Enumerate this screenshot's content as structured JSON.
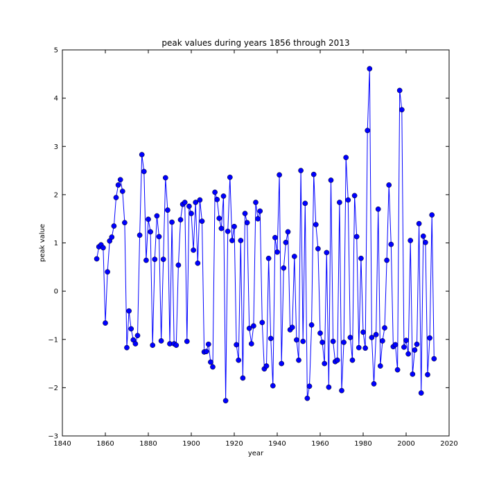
{
  "chart_data": {
    "type": "line",
    "title": "peak values during years 1856 through 2013",
    "xlabel": "year",
    "ylabel": "peak value",
    "xlim": [
      1840,
      2020
    ],
    "ylim": [
      -3,
      5
    ],
    "xticks": [
      1840,
      1860,
      1880,
      1900,
      1920,
      1940,
      1960,
      1980,
      2000,
      2020
    ],
    "yticks": [
      -3,
      -2,
      -1,
      0,
      1,
      2,
      3,
      4,
      5
    ],
    "ytick_labels": [
      "−3",
      "−2",
      "−1",
      "0",
      "1",
      "2",
      "3",
      "4",
      "5"
    ],
    "grid": false,
    "series": [
      {
        "color": "#0000ff",
        "marker": "circle",
        "x": [
          1856,
          1857,
          1858,
          1859,
          1860,
          1861,
          1862,
          1863,
          1864,
          1865,
          1866,
          1867,
          1868,
          1869,
          1870,
          1871,
          1872,
          1873,
          1874,
          1875,
          1876,
          1877,
          1878,
          1879,
          1880,
          1881,
          1882,
          1883,
          1884,
          1885,
          1886,
          1887,
          1888,
          1889,
          1890,
          1891,
          1892,
          1893,
          1894,
          1895,
          1896,
          1897,
          1898,
          1899,
          1900,
          1901,
          1902,
          1903,
          1904,
          1905,
          1906,
          1907,
          1908,
          1909,
          1910,
          1911,
          1912,
          1913,
          1914,
          1915,
          1916,
          1917,
          1918,
          1919,
          1920,
          1921,
          1922,
          1923,
          1924,
          1925,
          1926,
          1927,
          1928,
          1929,
          1930,
          1931,
          1932,
          1933,
          1934,
          1935,
          1936,
          1937,
          1938,
          1939,
          1940,
          1941,
          1942,
          1943,
          1944,
          1945,
          1946,
          1947,
          1948,
          1949,
          1950,
          1951,
          1952,
          1953,
          1954,
          1955,
          1956,
          1957,
          1958,
          1959,
          1960,
          1961,
          1962,
          1963,
          1964,
          1965,
          1966,
          1967,
          1968,
          1969,
          1970,
          1971,
          1972,
          1973,
          1974,
          1975,
          1976,
          1977,
          1978,
          1979,
          1980,
          1981,
          1982,
          1983,
          1984,
          1985,
          1986,
          1987,
          1988,
          1989,
          1990,
          1991,
          1992,
          1993,
          1994,
          1995,
          1996,
          1997,
          1998,
          1999,
          2000,
          2001,
          2002,
          2003,
          2004,
          2005,
          2006,
          2007,
          2008,
          2009,
          2010,
          2011,
          2012,
          2013
        ],
        "y": [
          0.67,
          0.92,
          0.96,
          0.9,
          -0.66,
          0.4,
          1.04,
          1.12,
          1.35,
          1.94,
          2.2,
          2.31,
          2.07,
          1.42,
          -1.17,
          -0.41,
          -0.78,
          -1.01,
          -1.09,
          -0.92,
          1.16,
          2.83,
          2.48,
          0.64,
          1.49,
          1.23,
          -1.12,
          0.66,
          1.56,
          1.13,
          -1.03,
          0.66,
          2.35,
          1.68,
          -1.09,
          1.43,
          -1.09,
          -1.12,
          0.54,
          1.48,
          1.8,
          1.84,
          -1.04,
          1.76,
          1.61,
          0.85,
          1.84,
          0.58,
          1.89,
          1.45,
          -1.26,
          -1.25,
          -1.1,
          -1.47,
          -1.57,
          2.05,
          1.9,
          1.51,
          1.3,
          1.97,
          -2.27,
          1.24,
          2.36,
          1.05,
          1.34,
          -1.11,
          -1.43,
          1.05,
          -1.8,
          1.61,
          1.42,
          -0.77,
          -1.09,
          -0.72,
          1.84,
          1.5,
          1.66,
          -0.65,
          -1.61,
          -1.55,
          0.68,
          -0.98,
          -1.96,
          1.11,
          0.81,
          2.41,
          -1.5,
          0.48,
          1.01,
          1.23,
          -0.8,
          -0.75,
          0.72,
          -1.01,
          -1.43,
          2.5,
          -1.04,
          1.82,
          -2.22,
          -1.97,
          -0.7,
          2.42,
          1.38,
          0.88,
          -0.87,
          -1.06,
          -1.5,
          0.8,
          -1.99,
          2.3,
          -1.04,
          -1.46,
          -1.43,
          1.84,
          -2.06,
          -1.06,
          2.77,
          1.89,
          -0.96,
          -1.43,
          1.98,
          1.13,
          -1.17,
          0.68,
          -0.85,
          -1.18,
          3.33,
          4.61,
          -0.96,
          -1.92,
          -0.9,
          1.7,
          -1.55,
          -1.03,
          -0.76,
          0.64,
          2.2,
          0.97,
          -1.15,
          -1.11,
          -1.63,
          4.16,
          3.76,
          -1.16,
          -1.02,
          -1.3,
          1.05,
          -1.72,
          -1.22,
          -1.1,
          1.4,
          -2.11,
          1.14,
          1.01,
          -1.73,
          -0.97,
          1.58,
          -1.4
        ]
      }
    ]
  }
}
